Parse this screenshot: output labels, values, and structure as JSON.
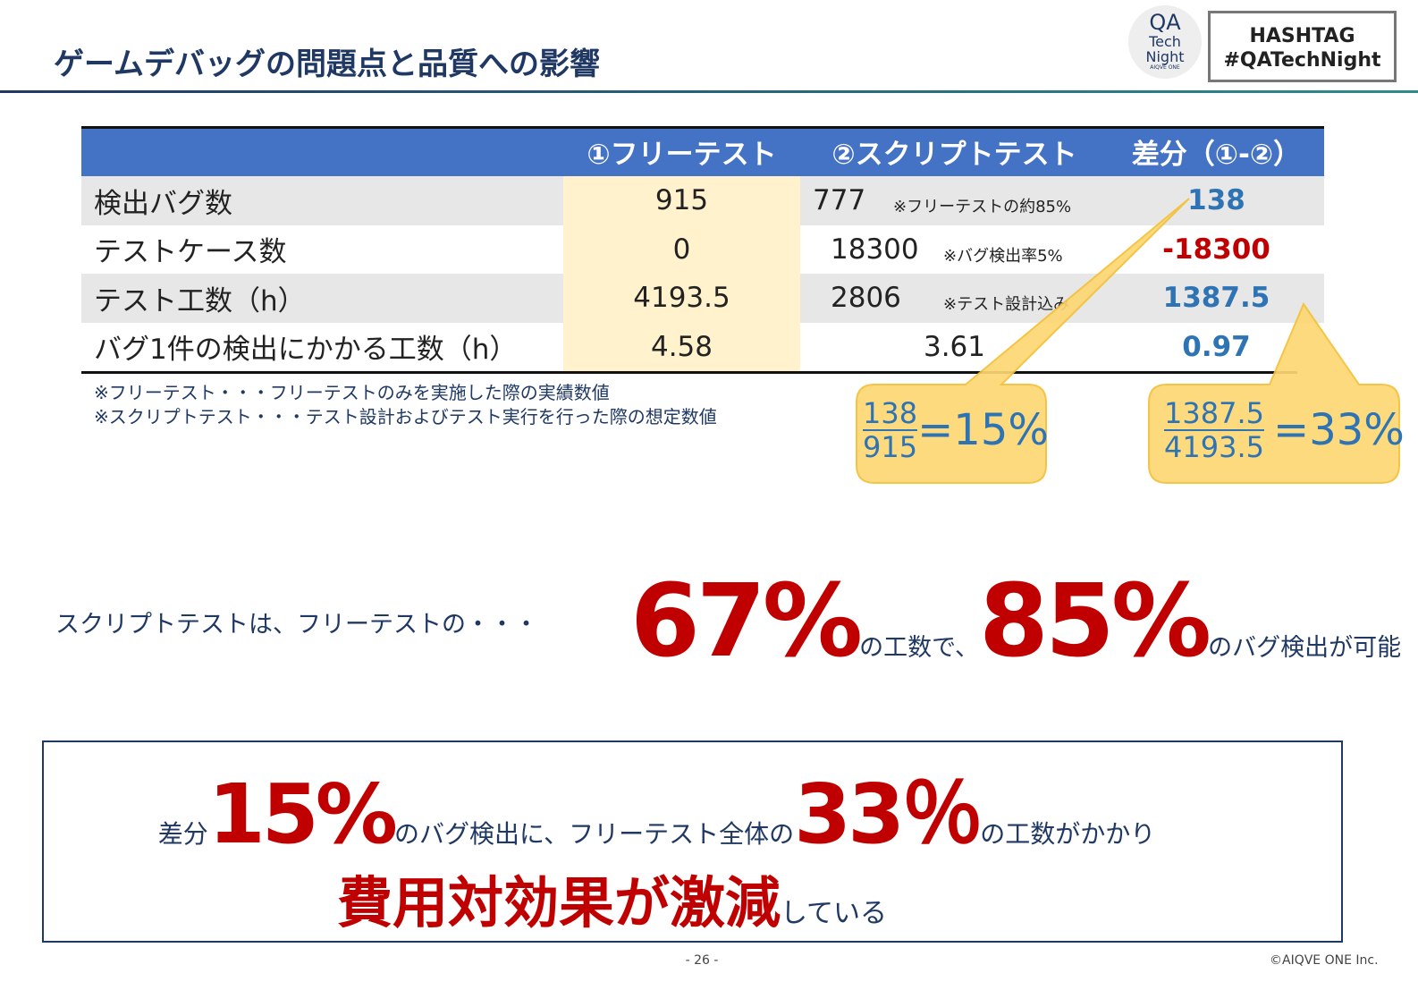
{
  "header": {
    "title": "ゲームデバッグの問題点と品質への影響",
    "logo": [
      "QA",
      "Tech",
      "Night",
      "AIQVE ONE"
    ],
    "hashtag": [
      "HASHTAG",
      "#QATechNight"
    ]
  },
  "table": {
    "header": [
      "①フリーテスト",
      "②スクリプトテスト",
      "差分（①-②）"
    ],
    "rows": [
      {
        "label": "検出バグ数",
        "free": "915",
        "script": "777",
        "note": "※フリーテストの約85%",
        "diff": "138"
      },
      {
        "label": "テストケース数",
        "free": "0",
        "script": "18300",
        "note": "※バグ検出率5%",
        "diff": "-18300"
      },
      {
        "label": "テスト工数（h）",
        "free": "4193.5",
        "script": "2806",
        "note": "※テスト設計込み",
        "diff": "1387.5"
      },
      {
        "label": "バグ1件の検出にかかる工数（h）",
        "free": "4.58",
        "script": "3.61",
        "diff": "0.97"
      }
    ],
    "notes": [
      "※フリーテスト・・・フリーテストのみを実施した際の実績数値",
      "※スクリプトテスト・・・テスト設計およびテスト実行を行った際の想定数値"
    ]
  },
  "callouts": [
    {
      "numerator": "138",
      "denominator": "915",
      "result": "=15%"
    },
    {
      "numerator": "1387.5",
      "denominator": "4193.5",
      "result": "=33%"
    }
  ],
  "summary": {
    "lead": "スクリプトテストは、フリーテストの・・・",
    "big1": "67%",
    "mid": "の工数で、",
    "big2": "85%",
    "tail": "のバグ検出が可能"
  },
  "conclusion": {
    "line1": [
      "差分",
      "15%",
      "のバグ検出に、フリーテスト全体の",
      "33％",
      "の工数がかかり"
    ],
    "line2": [
      "費用対効果が激減",
      "している"
    ]
  },
  "footer": {
    "page": "- 26 -",
    "copyright": "©AIQVE ONE Inc."
  }
}
